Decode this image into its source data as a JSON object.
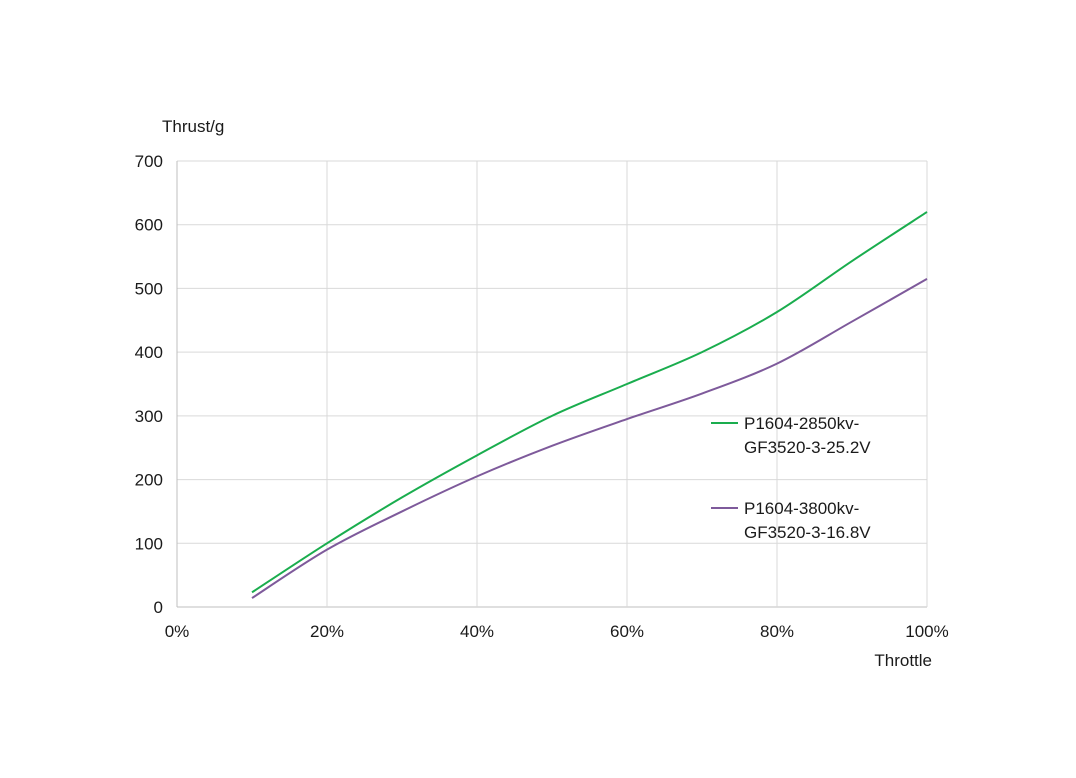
{
  "chart_data": {
    "type": "line",
    "title": "",
    "xlabel": "Throttle",
    "ylabel": "Thrust/g",
    "xlim": [
      0,
      100
    ],
    "ylim": [
      0,
      700
    ],
    "xticks": [
      0,
      20,
      40,
      60,
      80,
      100
    ],
    "xtick_labels": [
      "0%",
      "20%",
      "40%",
      "60%",
      "80%",
      "100%"
    ],
    "yticks": [
      0,
      100,
      200,
      300,
      400,
      500,
      600,
      700
    ],
    "ytick_labels": [
      "0",
      "100",
      "200",
      "300",
      "400",
      "500",
      "600",
      "700"
    ],
    "grid": true,
    "legend_position": "right",
    "x": [
      10,
      20,
      30,
      40,
      50,
      60,
      70,
      80,
      90,
      100
    ],
    "series": [
      {
        "name": "P1604-2850kv-GF3520-3-25.2V",
        "legend_lines": [
          "P1604-2850kv-",
          "GF3520-3-25.2V"
        ],
        "color": "#1aad4e",
        "values": [
          23,
          100,
          172,
          238,
          300,
          350,
          400,
          463,
          543,
          620
        ]
      },
      {
        "name": "P1604-3800kv-GF3520-3-16.8V",
        "legend_lines": [
          "P1604-3800kv-",
          "GF3520-3-16.8V"
        ],
        "color": "#7e5a9b",
        "values": [
          14,
          90,
          150,
          205,
          253,
          295,
          335,
          382,
          448,
          515
        ]
      }
    ]
  }
}
